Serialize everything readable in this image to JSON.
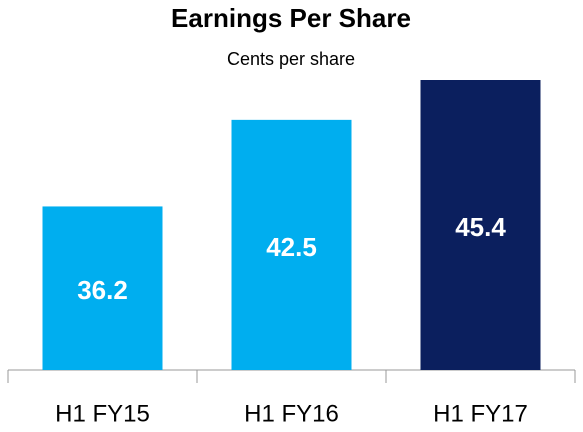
{
  "chart_data": {
    "type": "bar",
    "title": "Earnings Per Share",
    "subtitle": "Cents per share",
    "categories": [
      "H1 FY15",
      "H1 FY16",
      "H1 FY17"
    ],
    "values": [
      36.2,
      42.5,
      45.4
    ],
    "colors": [
      "#00aeef",
      "#00aeef",
      "#0b1f5e"
    ],
    "ylim": [
      24.3,
      45.4
    ]
  }
}
